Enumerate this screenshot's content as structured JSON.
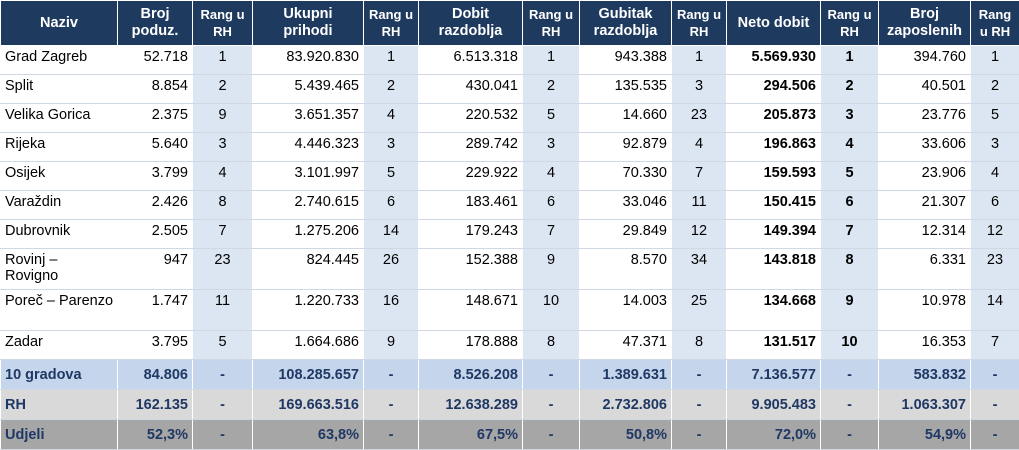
{
  "headers": [
    "Naziv",
    "Broj poduz.",
    "Rang u RH",
    "Ukupni prihodi",
    "Rang u RH",
    "Dobit razdoblja",
    "Rang u RH",
    "Gubitak razdoblja",
    "Rang u RH",
    "Neto dobit",
    "Rang u RH",
    "Broj zaposlenih",
    "Rang u RH"
  ],
  "rows": [
    [
      "Grad Zagreb",
      "52.718",
      "1",
      "83.920.830",
      "1",
      "6.513.318",
      "1",
      "943.388",
      "1",
      "5.569.930",
      "1",
      "394.760",
      "1"
    ],
    [
      "Split",
      "8.854",
      "2",
      "5.439.465",
      "2",
      "430.041",
      "2",
      "135.535",
      "3",
      "294.506",
      "2",
      "40.501",
      "2"
    ],
    [
      "Velika Gorica",
      "2.375",
      "9",
      "3.651.357",
      "4",
      "220.532",
      "5",
      "14.660",
      "23",
      "205.873",
      "3",
      "23.776",
      "5"
    ],
    [
      "Rijeka",
      "5.640",
      "3",
      "4.446.323",
      "3",
      "289.742",
      "3",
      "92.879",
      "4",
      "196.863",
      "4",
      "33.606",
      "3"
    ],
    [
      "Osijek",
      "3.799",
      "4",
      "3.101.997",
      "5",
      "229.922",
      "4",
      "70.330",
      "7",
      "159.593",
      "5",
      "23.906",
      "4"
    ],
    [
      "Varaždin",
      "2.426",
      "8",
      "2.740.615",
      "6",
      "183.461",
      "6",
      "33.046",
      "11",
      "150.415",
      "6",
      "21.307",
      "6"
    ],
    [
      "Dubrovnik",
      "2.505",
      "7",
      "1.275.206",
      "14",
      "179.243",
      "7",
      "29.849",
      "12",
      "149.394",
      "7",
      "12.314",
      "12"
    ],
    [
      "Rovinj – Rovigno",
      "947",
      "23",
      "824.445",
      "26",
      "152.388",
      "9",
      "8.570",
      "34",
      "143.818",
      "8",
      "6.331",
      "23"
    ],
    [
      "Poreč – Parenzo",
      "1.747",
      "11",
      "1.220.733",
      "16",
      "148.671",
      "10",
      "14.003",
      "25",
      "134.668",
      "9",
      "10.978",
      "14"
    ],
    [
      "Zadar",
      "3.795",
      "5",
      "1.664.686",
      "9",
      "178.888",
      "8",
      "47.371",
      "8",
      "131.517",
      "10",
      "16.353",
      "7"
    ]
  ],
  "summary": [
    [
      "10 gradova",
      "84.806",
      "-",
      "108.285.657",
      "-",
      "8.526.208",
      "-",
      "1.389.631",
      "-",
      "7.136.577",
      "-",
      "583.832",
      "-"
    ],
    [
      "RH",
      "162.135",
      "-",
      "169.663.516",
      "-",
      "12.638.289",
      "-",
      "2.732.806",
      "-",
      "9.905.483",
      "-",
      "1.063.307",
      "-"
    ],
    [
      "Udjeli",
      "52,3%",
      "-",
      "63,8%",
      "-",
      "67,5%",
      "-",
      "50,8%",
      "-",
      "72,0%",
      "-",
      "54,9%",
      "-"
    ]
  ],
  "colors": {
    "header": "#1f3a5f",
    "rank_shade": "#dce6f2",
    "summary_10": "#c5d6ec",
    "summary_rh": "#d9d9d9",
    "summary_udjeli": "#a6a6a6"
  }
}
